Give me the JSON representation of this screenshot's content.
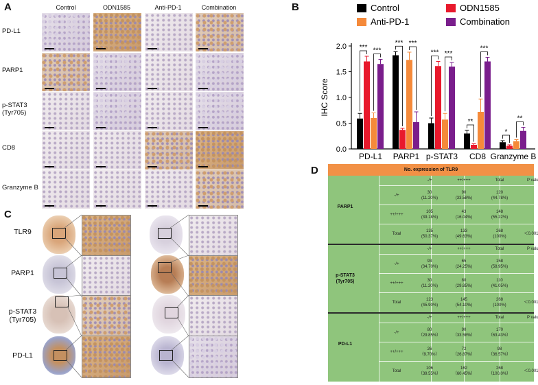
{
  "panels": {
    "a": "A",
    "b": "B",
    "c": "C",
    "d": "D"
  },
  "panel_a": {
    "columns": [
      "Control",
      "ODN1585",
      "Anti-PD-1",
      "Combination"
    ],
    "rows": [
      "PD-L1",
      "PARP1",
      "p-STAT3\n(Tyr705)",
      "CD8",
      "Granzyme B"
    ]
  },
  "panel_c": {
    "rows": [
      "TLR9",
      "PARP1",
      "p-STAT3\n(Tyr705)",
      "PD-L1"
    ]
  },
  "chart_data": {
    "type": "bar",
    "ylabel": "IHC Score",
    "ylim": [
      0,
      2.0
    ],
    "yticks": [
      "0.0",
      "0.5",
      "1.0",
      "1.5",
      "2.0"
    ],
    "categories": [
      "PD-L1",
      "PARP1",
      "p-STAT3",
      "CD8",
      "Granzyme B"
    ],
    "series": [
      {
        "name": "Control",
        "color": "#000000",
        "values": [
          0.59,
          1.82,
          0.5,
          0.3,
          0.13
        ],
        "errors": [
          0.1,
          0.07,
          0.1,
          0.06,
          0.03
        ]
      },
      {
        "name": "ODN1585",
        "color": "#e8192c",
        "values": [
          1.7,
          0.37,
          1.61,
          0.08,
          0.06
        ],
        "errors": [
          0.1,
          0.03,
          0.09,
          0.02,
          0.02
        ]
      },
      {
        "name": "Anti-PD-1",
        "color": "#f58a3a",
        "values": [
          0.6,
          1.73,
          0.57,
          0.72,
          0.15
        ],
        "errors": [
          0.1,
          0.15,
          0.12,
          0.25,
          0.03
        ]
      },
      {
        "name": "Combination",
        "color": "#7a1e8c",
        "values": [
          1.65,
          0.52,
          1.6,
          1.7,
          0.35
        ],
        "errors": [
          0.09,
          0.2,
          0.08,
          0.08,
          0.07
        ]
      }
    ],
    "significance": [
      {
        "group": 0,
        "from": 0,
        "to": 1,
        "label": "***"
      },
      {
        "group": 0,
        "from": 2,
        "to": 3,
        "label": "***"
      },
      {
        "group": 1,
        "from": 0,
        "to": 1,
        "label": "***"
      },
      {
        "group": 1,
        "from": 2,
        "to": 3,
        "label": "***"
      },
      {
        "group": 2,
        "from": 0,
        "to": 1,
        "label": "***"
      },
      {
        "group": 2,
        "from": 2,
        "to": 3,
        "label": "***"
      },
      {
        "group": 3,
        "from": 0,
        "to": 1,
        "label": "**"
      },
      {
        "group": 3,
        "from": 2,
        "to": 3,
        "label": "***"
      },
      {
        "group": 4,
        "from": 0,
        "to": 1,
        "label": "*"
      },
      {
        "group": 4,
        "from": 2,
        "to": 3,
        "label": "**"
      }
    ],
    "legend_position": "top"
  },
  "table": {
    "title": "No. expression of TLR9",
    "col_headers": [
      "-/+",
      "++/+++",
      "Total",
      "P value"
    ],
    "groups": [
      {
        "name": "PARP1",
        "rows": [
          {
            "label": "-/+",
            "c1": "30\n(11.20%)",
            "c2": "90\n(33.58%)",
            "total": "120\n(44.78%)",
            "p": ""
          },
          {
            "label": "++/+++",
            "c1": "105\n(39.18%)",
            "c2": "43\n(16.04%)",
            "total": "148\n(55.22%)",
            "p": ""
          },
          {
            "label": "Total",
            "c1": "135\n(50.37%)",
            "c2": "133\n(49.63%)",
            "total": "268\n(100%)",
            "p": "＜0.001"
          }
        ]
      },
      {
        "name": "p-STAT3\n(Tyr705)",
        "rows": [
          {
            "label": "-/+",
            "c1": "93\n(34.70%)",
            "c2": "65\n(24.25%)",
            "total": "158\n(58.95%)",
            "p": ""
          },
          {
            "label": "++/+++",
            "c1": "30\n(11.20%)",
            "c2": "80\n(29.85%)",
            "total": "110\n(41.05%)",
            "p": ""
          },
          {
            "label": "Total",
            "c1": "123\n(45.90%)",
            "c2": "145\n(54.10%)",
            "total": "268\n(100%)",
            "p": "＜0.001"
          }
        ]
      },
      {
        "name": "PD-L1",
        "rows": [
          {
            "label": "-/+",
            "c1": "80\n（29.85%）",
            "c2": "90\n（33.58%）",
            "total": "170\n（63.43%）",
            "p": ""
          },
          {
            "label": "++/+++",
            "c1": "26\n（9.70%）",
            "c2": "72\n（26.87%）",
            "total": "98\n（36.57%）",
            "p": ""
          },
          {
            "label": "Total",
            "c1": "106\n（39.55%）",
            "c2": "162\n（60.45%）",
            "total": "268\n（100.0%）",
            "p": "＜0.001"
          }
        ]
      }
    ]
  },
  "colors": {
    "table_header": "#f29146",
    "table_body": "#8fc57c"
  }
}
